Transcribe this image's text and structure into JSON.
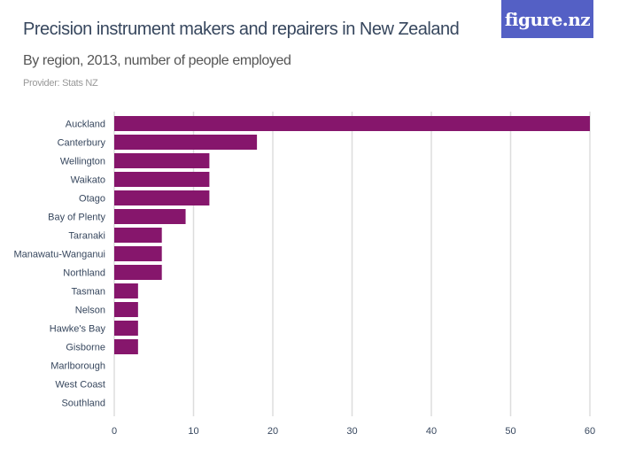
{
  "logo": "figure.nz",
  "chart_data": {
    "type": "bar",
    "orientation": "horizontal",
    "title": "Precision instrument makers and repairers in New Zealand",
    "subtitle": "By region, 2013, number of people employed",
    "provider": "Provider: Stats NZ",
    "categories": [
      "Auckland",
      "Canterbury",
      "Wellington",
      "Waikato",
      "Otago",
      "Bay of Plenty",
      "Taranaki",
      "Manawatu-Wanganui",
      "Northland",
      "Tasman",
      "Nelson",
      "Hawke's Bay",
      "Gisborne",
      "Marlborough",
      "West Coast",
      "Southland"
    ],
    "values": [
      60,
      18,
      12,
      12,
      12,
      9,
      6,
      6,
      6,
      3,
      3,
      3,
      3,
      0,
      0,
      0
    ],
    "xlim": [
      0,
      60
    ],
    "xticks": [
      0,
      10,
      20,
      30,
      40,
      50,
      60
    ],
    "grid": true,
    "bar_color": "#86166c"
  }
}
